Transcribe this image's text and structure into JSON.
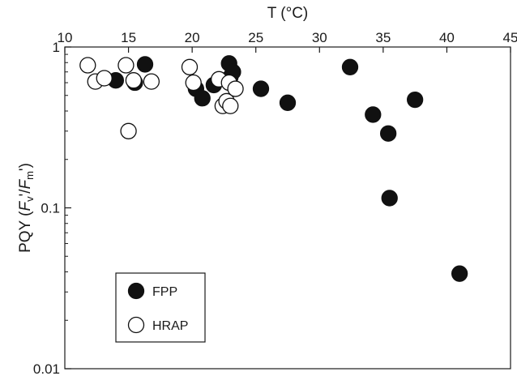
{
  "chart_data": {
    "type": "scatter",
    "xlabel": "T (°C)",
    "ylabel": "PQY (F",
    "ylabel_parts": {
      "prefix": "PQY (",
      "f1": "F",
      "sub1": "v",
      "mid": "'/",
      "f2": "F",
      "sub2": "m",
      "suffix": "')"
    },
    "x_axis_position": "top",
    "y_scale": "log",
    "xlim": [
      10,
      45
    ],
    "ylim": [
      0.01,
      1
    ],
    "x_ticks": [
      "10",
      "15",
      "20",
      "25",
      "30",
      "35",
      "40",
      "45"
    ],
    "y_ticks": [
      "0.01",
      "0.1",
      "1"
    ],
    "grid": false,
    "legend_position": "bottom-left",
    "series": [
      {
        "name": "FPP",
        "marker": "filled-circle",
        "color": "#111111",
        "points": [
          {
            "x": 14.0,
            "y": 0.62
          },
          {
            "x": 15.5,
            "y": 0.6
          },
          {
            "x": 16.3,
            "y": 0.78
          },
          {
            "x": 20.3,
            "y": 0.55
          },
          {
            "x": 20.8,
            "y": 0.48
          },
          {
            "x": 21.7,
            "y": 0.58
          },
          {
            "x": 22.9,
            "y": 0.79
          },
          {
            "x": 23.0,
            "y": 0.65
          },
          {
            "x": 23.2,
            "y": 0.7
          },
          {
            "x": 25.4,
            "y": 0.55
          },
          {
            "x": 27.5,
            "y": 0.45
          },
          {
            "x": 32.4,
            "y": 0.75
          },
          {
            "x": 34.2,
            "y": 0.38
          },
          {
            "x": 35.4,
            "y": 0.29
          },
          {
            "x": 35.5,
            "y": 0.115
          },
          {
            "x": 37.5,
            "y": 0.47
          },
          {
            "x": 41.0,
            "y": 0.039
          }
        ]
      },
      {
        "name": "HRAP",
        "marker": "open-circle",
        "color": "#111111",
        "points": [
          {
            "x": 11.8,
            "y": 0.77
          },
          {
            "x": 12.4,
            "y": 0.61
          },
          {
            "x": 13.1,
            "y": 0.64
          },
          {
            "x": 14.8,
            "y": 0.77
          },
          {
            "x": 15.0,
            "y": 0.3
          },
          {
            "x": 15.4,
            "y": 0.62
          },
          {
            "x": 16.8,
            "y": 0.61
          },
          {
            "x": 19.8,
            "y": 0.75
          },
          {
            "x": 20.1,
            "y": 0.6
          },
          {
            "x": 22.1,
            "y": 0.63
          },
          {
            "x": 22.4,
            "y": 0.43
          },
          {
            "x": 22.7,
            "y": 0.46
          },
          {
            "x": 22.9,
            "y": 0.6
          },
          {
            "x": 23.0,
            "y": 0.43
          },
          {
            "x": 23.4,
            "y": 0.55
          }
        ]
      }
    ]
  }
}
